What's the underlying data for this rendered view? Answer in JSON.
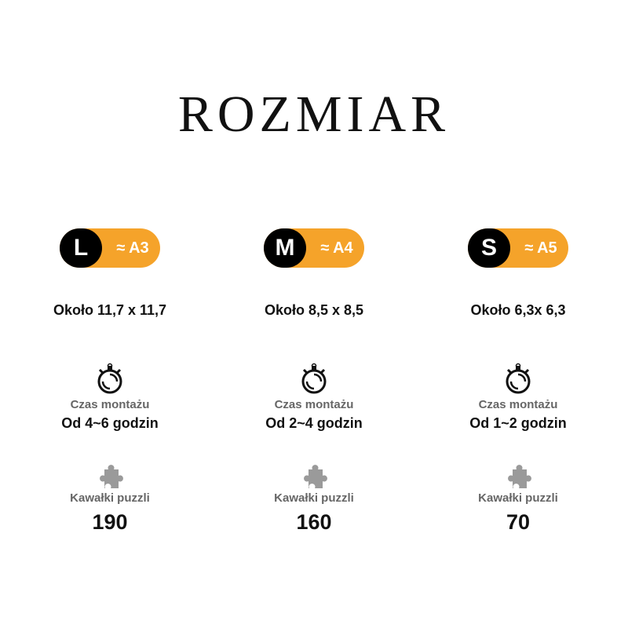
{
  "title": "ROZMIAR",
  "colors": {
    "accent": "#f5a32a",
    "badge_dark": "#000000",
    "label_gray": "#666666"
  },
  "sizes": [
    {
      "size": "L",
      "format": "≈ A3",
      "dimensions": "Około 11,7 x 11,7",
      "time_label": "Czas montażu",
      "time_value": "Od 4~6 godzin",
      "pieces_label": "Kawałki puzzli",
      "pieces_value": "190"
    },
    {
      "size": "M",
      "format": "≈ A4",
      "dimensions": "Około 8,5 x 8,5",
      "time_label": "Czas montażu",
      "time_value": "Od 2~4 godzin",
      "pieces_label": "Kawałki puzzli",
      "pieces_value": "160"
    },
    {
      "size": "S",
      "format": "≈ A5",
      "dimensions": "Około 6,3x 6,3",
      "time_label": "Czas montażu",
      "time_value": "Od 1~2 godzin",
      "pieces_label": "Kawałki puzzli",
      "pieces_value": "70"
    }
  ],
  "icons": {
    "time": "stopwatch-icon",
    "pieces": "puzzle-piece-icon"
  }
}
